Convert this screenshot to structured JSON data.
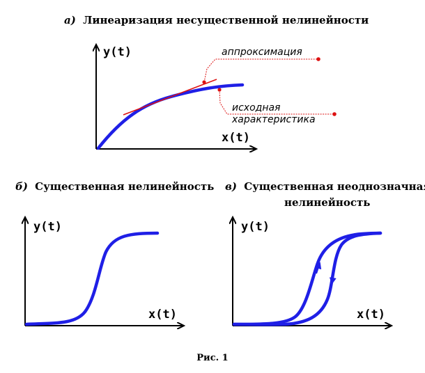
{
  "panel_a": {
    "title_letter": "а)",
    "title_text": "Линеаризация несущественной нелинейности",
    "y_label": "y(t)",
    "x_label": "x(t)",
    "callout_approx": "аппроксимация",
    "callout_orig_1": "исходная",
    "callout_orig_2": "характеристика"
  },
  "panel_b": {
    "title_letter": "б)",
    "title_text": "Существенная нелинейность",
    "y_label": "y(t)",
    "x_label": "x(t)"
  },
  "panel_c": {
    "title_letter": "в)",
    "title_line1": "Существенная неоднозначная",
    "title_line2": "нелинейность",
    "y_label": "y(t)",
    "x_label": "x(t)"
  },
  "figure": {
    "caption": "Рис. 1"
  },
  "colors": {
    "curve": "#1f1fe6",
    "approximation": "#dd1111",
    "axis": "#000000"
  }
}
